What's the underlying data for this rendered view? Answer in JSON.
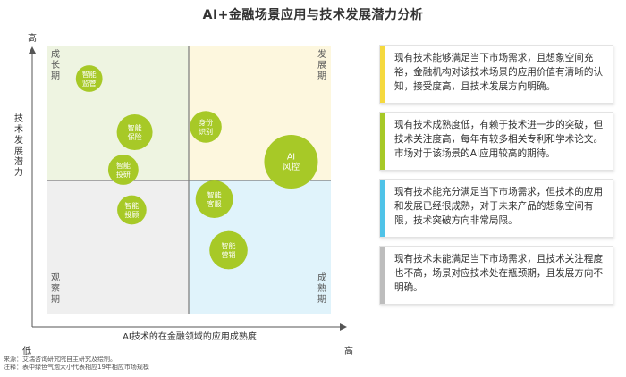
{
  "title": "AI+金融场景应用与技术发展潜力分析",
  "chart_data": {
    "type": "scatter",
    "title": "AI+金融场景应用与技术发展潜力分析",
    "xlabel": "AI技术的在金融领域的应用成熟度",
    "ylabel": "技术发展潜力",
    "x_low_label": "低",
    "x_high_label": "高",
    "y_high_label": "高",
    "xlim": [
      0,
      100
    ],
    "ylim": [
      0,
      100
    ],
    "quadrants": [
      {
        "name": "成长期",
        "position": "top-left",
        "color": "#eef4e1"
      },
      {
        "name": "发展期",
        "position": "top-right",
        "color": "#fdf7de"
      },
      {
        "name": "观察期",
        "position": "bottom-left",
        "color": "#efefef"
      },
      {
        "name": "成熟期",
        "position": "bottom-right",
        "color": "#e0f3fb"
      }
    ],
    "bubble_color": "#a7c927",
    "points": [
      {
        "label": "智能监管",
        "x": 15,
        "y": 88,
        "size": 6
      },
      {
        "label": "智能保险",
        "x": 31,
        "y": 68,
        "size": 25
      },
      {
        "label": "智能投研",
        "x": 27,
        "y": 54,
        "size": 12
      },
      {
        "label": "身份识别",
        "x": 56,
        "y": 70,
        "size": 15
      },
      {
        "label": "AI风控",
        "x": 86,
        "y": 57,
        "size": 100
      },
      {
        "label": "智能投顾",
        "x": 30,
        "y": 39,
        "size": 10
      },
      {
        "label": "智能客服",
        "x": 59,
        "y": 43,
        "size": 30
      },
      {
        "label": "智能营销",
        "x": 64,
        "y": 24,
        "size": 32
      }
    ]
  },
  "descriptions": [
    {
      "text": "现有技术能够满足当下市场需求，且想象空间充裕，金融机构对该技术场景的应用价值有清晰的认知，接受度高，且技术发展方向明确。",
      "color": "#f5d93e"
    },
    {
      "text": "现有技术成熟度低，有赖于技术进一步的突破，但技术关注度高，每年有较多相关专利和学术论文。市场对于该场景的AI应用较高的期待。",
      "color": "#a7c927"
    },
    {
      "text": "现有技术能充分满足当下市场需求，但技术的应用和发展已经很成熟，对于未来产品的想象空间有限，技术突破方向非常局限。",
      "color": "#4fc3e8"
    },
    {
      "text": "现有技术未能满足当下市场需求，且技术关注程度也不高，场景对应技术处在瓶颈期，且发展方向不明确。",
      "color": "#bdbdbd"
    }
  ],
  "footer": {
    "source": "来源：艾瑞咨询研究院自主研究及绘制。",
    "note": "注释：表中绿色气泡大小代表相应19年相应市场规模"
  }
}
